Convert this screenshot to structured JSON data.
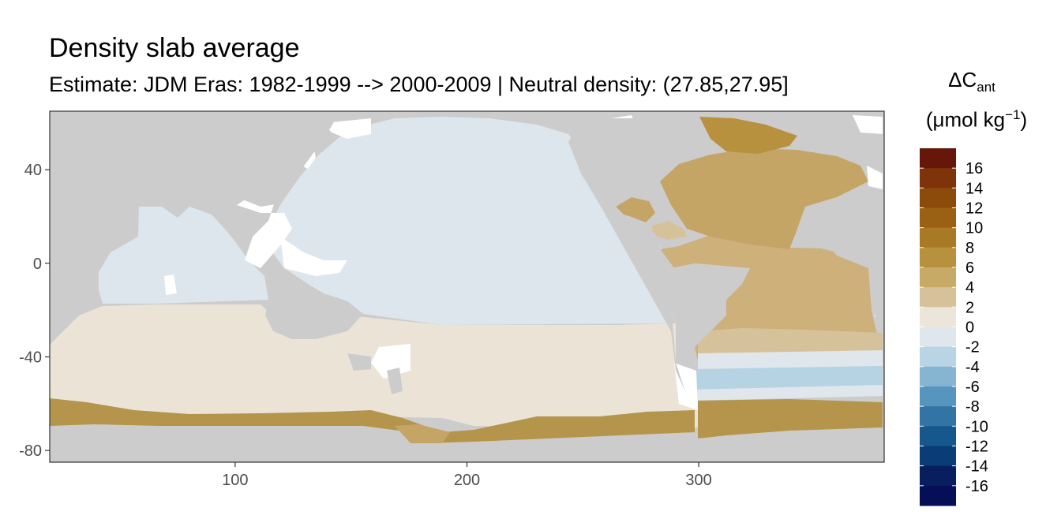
{
  "title": "Density slab average",
  "subtitle": "Estimate: JDM Eras: 1982-1999 --> 2000-2009 | Neutral density: (27.85,27.95]",
  "legend": {
    "title_symbol": "ΔC",
    "title_subscript": "ant",
    "unit_open": "(μmol kg",
    "unit_sup": "−1",
    "unit_close": ")",
    "labels": [
      "16",
      "14",
      "12",
      "10",
      "8",
      "6",
      "4",
      "2",
      "0",
      "-2",
      "-4",
      "-6",
      "-8",
      "-10",
      "-12",
      "-14",
      "-16"
    ],
    "colors": [
      "#67170a",
      "#7e3309",
      "#8b4b0b",
      "#9a6114",
      "#a97a26",
      "#b8913e",
      "#c6aa66",
      "#d6c29a",
      "#ece6da",
      "#dfe7ec",
      "#b9d4e4",
      "#86b5d2",
      "#5695bd",
      "#3275a4",
      "#16588d",
      "#0a3d76",
      "#071f5e",
      "#050f58"
    ]
  },
  "map_colors": {
    "land": "#cccccc",
    "ice_white": "#ffffff",
    "pacific_indian_tropical": "#dde6ec",
    "southern_beige": "#ebe4d6",
    "atlantic_tan": "#cdb07a",
    "north_atlantic_tan": "#c5a566",
    "antarctic_brown": "#b5944c",
    "weddell_blue": "#b6d3e3"
  },
  "chart_data": {
    "type": "heatmap",
    "title": "Density slab average",
    "subtitle": "Estimate: JDM Eras: 1982-1999 --> 2000-2009 | Neutral density: (27.85,27.95]",
    "xlabel": "",
    "ylabel": "",
    "xlim": [
      20,
      380
    ],
    "ylim": [
      -85,
      65
    ],
    "x_ticks": [
      100,
      200,
      300
    ],
    "y_ticks": [
      40,
      0,
      -40,
      -80
    ],
    "legend_placement": "right",
    "value_range": [
      -18,
      18
    ],
    "legend_breaks": [
      16,
      14,
      12,
      10,
      8,
      6,
      4,
      2,
      0,
      -2,
      -4,
      -6,
      -8,
      -10,
      -12,
      -14,
      -16
    ]
  }
}
